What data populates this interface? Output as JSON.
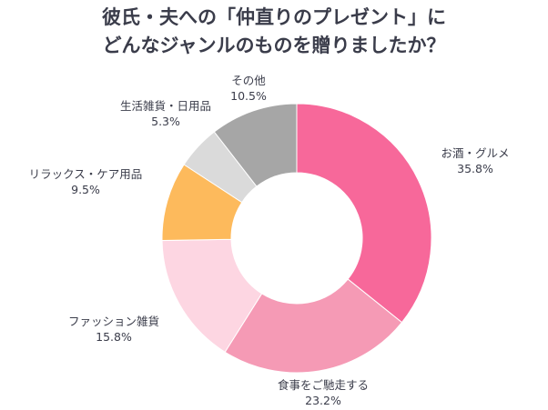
{
  "chart_data": {
    "type": "pie",
    "donut": true,
    "title": [
      "彼氏・夫への「仲直りのプレゼント」に",
      "どんなジャンルのものを贈りましたか？"
    ],
    "slices": [
      {
        "label": "お酒・グルメ",
        "value": 35.8,
        "display": "35.8%",
        "color": "#F7689A"
      },
      {
        "label": "食事をご馳走する",
        "value": 23.2,
        "display": "23.2%",
        "color": "#F59AB5"
      },
      {
        "label": "ファッション雑貨",
        "value": 15.8,
        "display": "15.8%",
        "color": "#FDD6E2"
      },
      {
        "label": "リラックス・ケア用品",
        "value": 9.5,
        "display": "9.5%",
        "color": "#FDBA5C"
      },
      {
        "label": "生活雑貨・日用品",
        "value": 5.3,
        "display": "5.3%",
        "color": "#DADADA"
      },
      {
        "label": "その他",
        "value": 10.5,
        "display": "10.5%",
        "color": "#A6A6A6"
      }
    ],
    "start_angle": "top, clockwise"
  }
}
